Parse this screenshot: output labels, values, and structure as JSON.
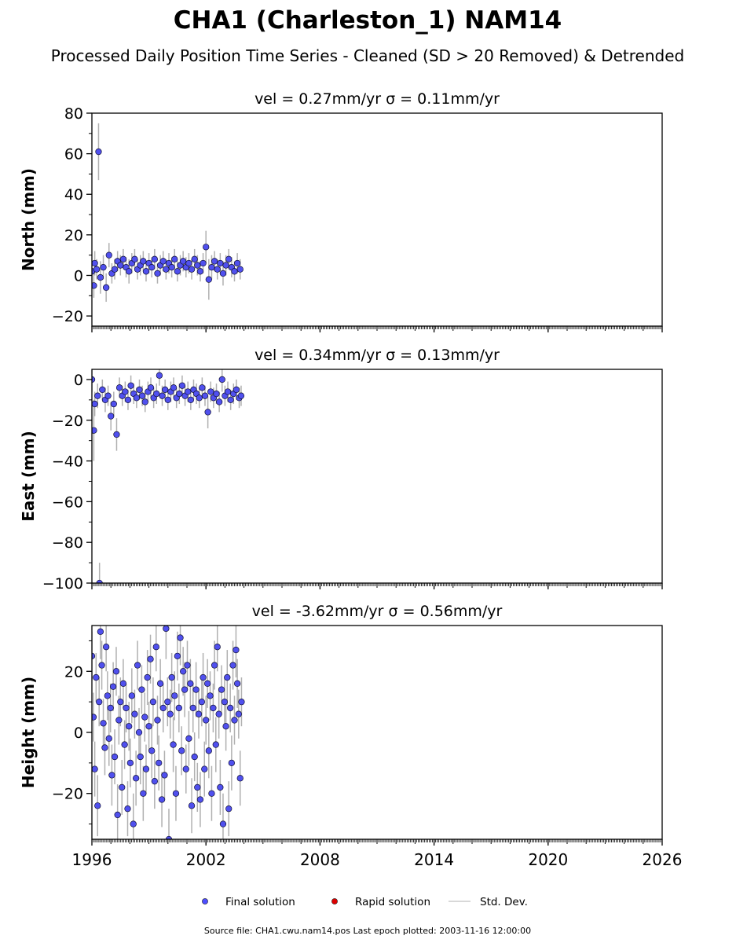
{
  "title": "CHA1 (Charleston_1) NAM14",
  "subtitle": "Processed Daily Position Time Series - Cleaned (SD > 20 Removed) & Detrended",
  "footer": "Source file: CHA1.cwu.nam14.pos  Last epoch plotted: 2003-11-16 12:00:00",
  "legend": {
    "placement": "bottom-center",
    "items": [
      {
        "label": "Final solution",
        "marker": "circle",
        "color": "#4d4dff"
      },
      {
        "label": "Rapid solution",
        "marker": "circle",
        "color": "#dd0000"
      },
      {
        "label": "Std. Dev.",
        "marker": "line",
        "color": "#cccccc"
      }
    ]
  },
  "colors": {
    "final_fill": "#5050ee",
    "final_edge": "#111133",
    "errorbar": "#b0b0b0",
    "axis": "#000000"
  },
  "chart_data": [
    {
      "type": "scatter",
      "panel": "north",
      "title": "vel = 0.27mm/yr   σ = 0.11mm/yr",
      "ylabel": "North (mm)",
      "xlabel": "",
      "xlim": [
        1996,
        2026
      ],
      "ylim": [
        -25,
        80
      ],
      "yticks": [
        -20,
        0,
        20,
        40,
        60,
        80
      ],
      "xticks": [
        1996,
        2002,
        2008,
        2014,
        2020,
        2026
      ],
      "xticklabels_visible": false,
      "grid": false,
      "series": [
        {
          "name": "Final solution",
          "x": [
            1996.0,
            1996.1,
            1996.15,
            1996.25,
            1996.35,
            1996.45,
            1996.6,
            1996.75,
            1996.9,
            1997.05,
            1997.2,
            1997.35,
            1997.5,
            1997.65,
            1997.8,
            1997.95,
            1998.1,
            1998.25,
            1998.4,
            1998.55,
            1998.7,
            1998.85,
            1999.0,
            1999.15,
            1999.3,
            1999.45,
            1999.6,
            1999.75,
            1999.9,
            2000.05,
            2000.2,
            2000.35,
            2000.5,
            2000.65,
            2000.8,
            2000.95,
            2001.1,
            2001.25,
            2001.4,
            2001.55,
            2001.7,
            2001.85,
            2002.0,
            2002.15,
            2002.3,
            2002.45,
            2002.6,
            2002.75,
            2002.9,
            2003.05,
            2003.2,
            2003.35,
            2003.5,
            2003.65,
            2003.8
          ],
          "y": [
            2,
            -5,
            6,
            3,
            61,
            -1,
            4,
            -6,
            10,
            1,
            3,
            7,
            5,
            8,
            4,
            2,
            6,
            8,
            3,
            5,
            7,
            2,
            6,
            4,
            8,
            1,
            5,
            7,
            3,
            6,
            4,
            8,
            2,
            5,
            7,
            4,
            6,
            3,
            8,
            5,
            2,
            6,
            14,
            -2,
            4,
            7,
            3,
            6,
            1,
            5,
            8,
            4,
            2,
            6,
            3
          ],
          "yerr": [
            5,
            6,
            6,
            5,
            14,
            8,
            6,
            7,
            6,
            5,
            5,
            5,
            5,
            5,
            5,
            6,
            5,
            5,
            5,
            5,
            5,
            5,
            5,
            5,
            5,
            5,
            5,
            5,
            5,
            5,
            5,
            5,
            5,
            5,
            5,
            5,
            5,
            5,
            5,
            5,
            5,
            5,
            8,
            10,
            6,
            5,
            5,
            5,
            6,
            5,
            5,
            5,
            5,
            5,
            5
          ]
        },
        {
          "name": "Rapid solution",
          "x": [],
          "y": []
        }
      ]
    },
    {
      "type": "scatter",
      "panel": "east",
      "title": "vel = 0.34mm/yr   σ = 0.13mm/yr",
      "ylabel": "East (mm)",
      "xlabel": "",
      "xlim": [
        1996,
        2026
      ],
      "ylim": [
        -100,
        5
      ],
      "yticks": [
        -100,
        -80,
        -60,
        -40,
        -20,
        0
      ],
      "xticks": [
        1996,
        2002,
        2008,
        2014,
        2020,
        2026
      ],
      "xticklabels_visible": false,
      "grid": false,
      "series": [
        {
          "name": "Final solution",
          "x": [
            1996.0,
            1996.1,
            1996.15,
            1996.3,
            1996.4,
            1996.55,
            1996.7,
            1996.85,
            1997.0,
            1997.15,
            1997.3,
            1997.45,
            1997.6,
            1997.75,
            1997.9,
            1998.05,
            1998.2,
            1998.35,
            1998.5,
            1998.65,
            1998.8,
            1998.95,
            1999.1,
            1999.25,
            1999.4,
            1999.55,
            1999.7,
            1999.85,
            2000.0,
            2000.15,
            2000.3,
            2000.45,
            2000.6,
            2000.75,
            2000.9,
            2001.05,
            2001.2,
            2001.35,
            2001.5,
            2001.65,
            2001.8,
            2001.95,
            2002.1,
            2002.25,
            2002.4,
            2002.55,
            2002.7,
            2002.85,
            2003.0,
            2003.15,
            2003.3,
            2003.45,
            2003.6,
            2003.75,
            2003.85
          ],
          "y": [
            0,
            -25,
            -12,
            -8,
            -100,
            -5,
            -10,
            -8,
            -18,
            -12,
            -27,
            -4,
            -8,
            -6,
            -10,
            -3,
            -7,
            -9,
            -5,
            -8,
            -11,
            -6,
            -4,
            -9,
            -7,
            2,
            -8,
            -5,
            -10,
            -6,
            -4,
            -9,
            -7,
            -3,
            -8,
            -6,
            -10,
            -5,
            -7,
            -9,
            -4,
            -8,
            -16,
            -6,
            -9,
            -7,
            -11,
            0,
            -8,
            -6,
            -10,
            -7,
            -5,
            -9,
            -8
          ],
          "yerr": [
            6,
            15,
            6,
            6,
            10,
            5,
            6,
            5,
            7,
            6,
            8,
            5,
            5,
            5,
            5,
            5,
            5,
            5,
            5,
            5,
            5,
            5,
            5,
            5,
            5,
            5,
            5,
            5,
            5,
            5,
            5,
            5,
            5,
            5,
            5,
            5,
            5,
            5,
            5,
            5,
            5,
            5,
            8,
            5,
            5,
            5,
            5,
            6,
            5,
            5,
            5,
            5,
            5,
            5,
            5
          ]
        },
        {
          "name": "Rapid solution",
          "x": [],
          "y": []
        }
      ]
    },
    {
      "type": "scatter",
      "panel": "height",
      "title": "vel = -3.62mm/yr   σ = 0.56mm/yr",
      "ylabel": "Height (mm)",
      "xlabel": "",
      "xlim": [
        1996,
        2026
      ],
      "ylim": [
        -35,
        35
      ],
      "yticks": [
        -20,
        0,
        20
      ],
      "xticks": [
        1996,
        2002,
        2008,
        2014,
        2020,
        2026
      ],
      "xticklabels": [
        "1996",
        "2002",
        "2008",
        "2014",
        "2020",
        "2026"
      ],
      "xticklabels_visible": true,
      "grid": false,
      "series": [
        {
          "name": "Final solution",
          "x": [
            1996.0,
            1996.08,
            1996.15,
            1996.22,
            1996.3,
            1996.38,
            1996.45,
            1996.52,
            1996.6,
            1996.68,
            1996.75,
            1996.82,
            1996.9,
            1996.98,
            1997.05,
            1997.12,
            1997.2,
            1997.28,
            1997.35,
            1997.42,
            1997.5,
            1997.58,
            1997.65,
            1997.72,
            1997.8,
            1997.88,
            1997.95,
            1998.02,
            1998.1,
            1998.18,
            1998.25,
            1998.32,
            1998.4,
            1998.48,
            1998.55,
            1998.62,
            1998.7,
            1998.78,
            1998.85,
            1998.92,
            1999.0,
            1999.08,
            1999.15,
            1999.22,
            1999.3,
            1999.38,
            1999.45,
            1999.52,
            1999.6,
            1999.68,
            1999.75,
            1999.82,
            1999.9,
            1999.98,
            2000.05,
            2000.12,
            2000.2,
            2000.28,
            2000.35,
            2000.42,
            2000.5,
            2000.58,
            2000.65,
            2000.72,
            2000.8,
            2000.88,
            2000.95,
            2001.02,
            2001.1,
            2001.18,
            2001.25,
            2001.32,
            2001.4,
            2001.48,
            2001.55,
            2001.62,
            2001.7,
            2001.78,
            2001.85,
            2001.92,
            2002.0,
            2002.08,
            2002.15,
            2002.22,
            2002.3,
            2002.38,
            2002.45,
            2002.52,
            2002.6,
            2002.68,
            2002.75,
            2002.82,
            2002.9,
            2002.98,
            2003.05,
            2003.12,
            2003.2,
            2003.28,
            2003.35,
            2003.42,
            2003.5,
            2003.58,
            2003.65,
            2003.72,
            2003.8,
            2003.87
          ],
          "y": [
            25,
            5,
            -12,
            18,
            -24,
            10,
            33,
            22,
            3,
            -5,
            28,
            12,
            -2,
            8,
            -14,
            15,
            -8,
            20,
            -27,
            4,
            10,
            -18,
            16,
            -4,
            8,
            -25,
            2,
            -10,
            12,
            -30,
            6,
            -15,
            22,
            0,
            -8,
            14,
            -20,
            5,
            -12,
            18,
            2,
            24,
            -6,
            10,
            -16,
            28,
            4,
            -10,
            16,
            -22,
            8,
            -14,
            34,
            10,
            -35,
            6,
            18,
            -4,
            12,
            -20,
            25,
            8,
            31,
            -6,
            20,
            14,
            -12,
            22,
            -2,
            16,
            -24,
            8,
            -8,
            14,
            -18,
            6,
            -22,
            10,
            18,
            -12,
            4,
            16,
            -6,
            12,
            -20,
            8,
            22,
            -4,
            28,
            6,
            -18,
            14,
            -30,
            10,
            2,
            18,
            -25,
            8,
            -10,
            22,
            4,
            27,
            16,
            6,
            -15,
            10
          ],
          "yerr": [
            8,
            8,
            9,
            8,
            10,
            8,
            9,
            8,
            8,
            9,
            8,
            8,
            9,
            8,
            10,
            8,
            9,
            8,
            10,
            8,
            8,
            9,
            8,
            8,
            8,
            9,
            8,
            8,
            9,
            10,
            8,
            9,
            8,
            8,
            9,
            8,
            9,
            8,
            8,
            9,
            8,
            8,
            9,
            8,
            9,
            8,
            8,
            9,
            8,
            9,
            8,
            8,
            10,
            8,
            10,
            8,
            8,
            9,
            8,
            9,
            8,
            8,
            9,
            8,
            8,
            9,
            8,
            8,
            9,
            8,
            9,
            8,
            8,
            9,
            8,
            8,
            9,
            8,
            8,
            9,
            8,
            8,
            9,
            8,
            9,
            8,
            8,
            9,
            8,
            8,
            9,
            8,
            10,
            8,
            8,
            9,
            9,
            8,
            9,
            8,
            8,
            9,
            8,
            8,
            9,
            8
          ]
        },
        {
          "name": "Rapid solution",
          "x": [],
          "y": []
        }
      ]
    }
  ]
}
